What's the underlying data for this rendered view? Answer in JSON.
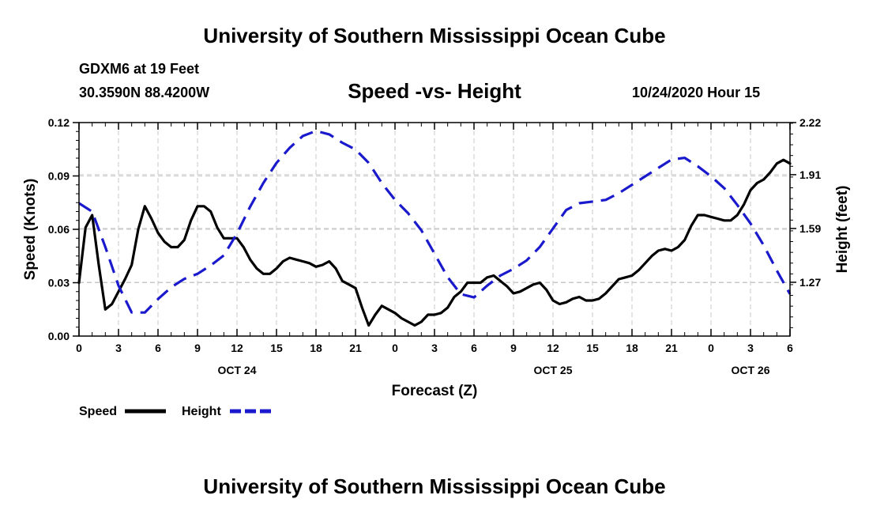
{
  "header": {
    "title_top": "University of Southern Mississippi Ocean Cube",
    "title_bottom": "University of Southern Mississippi Ocean Cube",
    "station": "GDXM6 at 19 Feet",
    "coords": "30.3590N 88.4200W",
    "timestamp": "10/24/2020 Hour 15"
  },
  "colors": {
    "speed": "#000000",
    "height": "#1a1acc",
    "grid": "#c8c8c8"
  },
  "chart_data": {
    "type": "line",
    "title": "Speed -vs- Height",
    "xlabel": "Forecast (Z)",
    "ylabel": "Speed (Knots)",
    "y2label": "Height (feet)",
    "xlim": [
      0,
      54
    ],
    "ylim": [
      0,
      0.12
    ],
    "y2lim": [
      0.95,
      2.22
    ],
    "x_ticks": [
      0,
      3,
      6,
      9,
      12,
      15,
      18,
      21,
      24,
      27,
      30,
      33,
      36,
      39,
      42,
      45,
      48,
      51,
      54
    ],
    "x_tick_labels": [
      "0",
      "3",
      "6",
      "9",
      "12",
      "15",
      "18",
      "21",
      "0",
      "3",
      "6",
      "9",
      "12",
      "15",
      "18",
      "21",
      "0",
      "3",
      "6"
    ],
    "date_labels": [
      {
        "x": 12,
        "label": "OCT 24"
      },
      {
        "x": 36,
        "label": "OCT 25"
      },
      {
        "x": 51,
        "label": "OCT 26"
      }
    ],
    "y_ticks": [
      0,
      0.03,
      0.06,
      0.09,
      0.12
    ],
    "y_tick_labels": [
      "0.00",
      "0.03",
      "0.06",
      "0.09",
      "0.12"
    ],
    "y2_ticks": [
      1.27,
      1.59,
      1.91,
      2.22
    ],
    "y2_tick_labels": [
      "1.27",
      "1.59",
      "1.91",
      "2.22"
    ],
    "series": [
      {
        "name": "Speed",
        "axis": "left",
        "style": "solid",
        "x": [
          0,
          0.5,
          1,
          1.5,
          2,
          2.5,
          3,
          3.5,
          4,
          4.5,
          5,
          5.5,
          6,
          6.5,
          7,
          7.5,
          8,
          8.5,
          9,
          9.5,
          10,
          10.5,
          11,
          11.5,
          12,
          12.5,
          13,
          13.5,
          14,
          14.5,
          15,
          15.5,
          16,
          16.5,
          17,
          17.5,
          18,
          18.5,
          19,
          19.5,
          20,
          20.5,
          21,
          21.5,
          22,
          22.5,
          23,
          23.5,
          24,
          24.5,
          25,
          25.5,
          26,
          26.5,
          27,
          27.5,
          28,
          28.5,
          29,
          29.5,
          30,
          30.5,
          31,
          31.5,
          32,
          32.5,
          33,
          33.5,
          34,
          34.5,
          35,
          35.5,
          36,
          36.5,
          37,
          37.5,
          38,
          38.5,
          39,
          39.5,
          40,
          40.5,
          41,
          41.5,
          42,
          42.5,
          43,
          43.5,
          44,
          44.5,
          45,
          45.5,
          46,
          46.5,
          47,
          47.5,
          48,
          48.5,
          49,
          49.5,
          50,
          50.5,
          51,
          51.5,
          52,
          52.5,
          53,
          53.5,
          54
        ],
        "values": [
          0.03,
          0.061,
          0.068,
          0.04,
          0.015,
          0.018,
          0.025,
          0.032,
          0.04,
          0.06,
          0.073,
          0.066,
          0.058,
          0.053,
          0.05,
          0.05,
          0.054,
          0.065,
          0.073,
          0.073,
          0.07,
          0.061,
          0.055,
          0.055,
          0.055,
          0.05,
          0.043,
          0.038,
          0.035,
          0.035,
          0.038,
          0.042,
          0.044,
          0.043,
          0.042,
          0.041,
          0.039,
          0.04,
          0.042,
          0.038,
          0.031,
          0.029,
          0.027,
          0.016,
          0.006,
          0.012,
          0.017,
          0.015,
          0.013,
          0.01,
          0.008,
          0.006,
          0.008,
          0.012,
          0.012,
          0.013,
          0.016,
          0.022,
          0.025,
          0.03,
          0.03,
          0.03,
          0.033,
          0.034,
          0.031,
          0.028,
          0.024,
          0.025,
          0.027,
          0.029,
          0.03,
          0.026,
          0.02,
          0.018,
          0.019,
          0.021,
          0.022,
          0.02,
          0.02,
          0.021,
          0.024,
          0.028,
          0.032,
          0.033,
          0.034,
          0.037,
          0.041,
          0.045,
          0.048,
          0.049,
          0.048,
          0.05,
          0.054,
          0.062,
          0.068,
          0.068,
          0.067,
          0.066,
          0.065,
          0.065,
          0.068,
          0.074,
          0.082,
          0.086,
          0.088,
          0.092,
          0.097,
          0.099,
          0.097
        ]
      },
      {
        "name": "Height",
        "axis": "right",
        "style": "dashed",
        "x": [
          0,
          1,
          2,
          3,
          4,
          5,
          6,
          7,
          8,
          9,
          10,
          11,
          12,
          13,
          14,
          15,
          16,
          17,
          18,
          19,
          20,
          21,
          22,
          23,
          24,
          25,
          26,
          27,
          28,
          29,
          30,
          31,
          32,
          33,
          34,
          35,
          36,
          37,
          38,
          39,
          40,
          41,
          42,
          43,
          44,
          45,
          46,
          47,
          48,
          49,
          50,
          51,
          52,
          53,
          54
        ],
        "values": [
          1.74,
          1.69,
          1.48,
          1.25,
          1.09,
          1.09,
          1.17,
          1.24,
          1.29,
          1.32,
          1.37,
          1.43,
          1.56,
          1.72,
          1.86,
          1.98,
          2.07,
          2.14,
          2.17,
          2.15,
          2.1,
          2.06,
          1.98,
          1.86,
          1.76,
          1.68,
          1.58,
          1.44,
          1.3,
          1.2,
          1.18,
          1.25,
          1.31,
          1.35,
          1.4,
          1.48,
          1.59,
          1.7,
          1.74,
          1.75,
          1.76,
          1.8,
          1.85,
          1.9,
          1.95,
          2.0,
          2.01,
          1.96,
          1.9,
          1.83,
          1.73,
          1.62,
          1.49,
          1.34,
          1.2
        ]
      }
    ],
    "legend": [
      {
        "label": "Speed",
        "style": "solid"
      },
      {
        "label": "Height",
        "style": "dashed"
      }
    ]
  }
}
